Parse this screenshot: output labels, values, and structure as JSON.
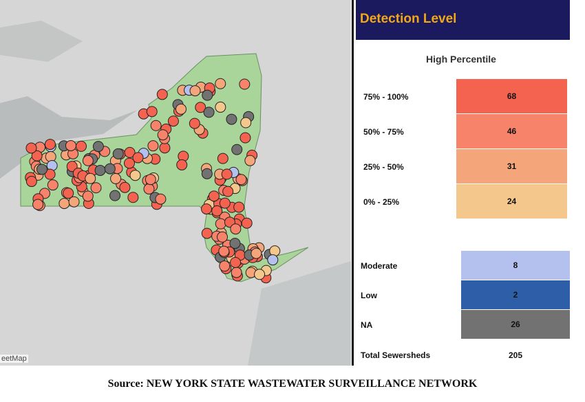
{
  "map": {
    "credit": "eetMap"
  },
  "legend": {
    "title": "Detection Level",
    "subtitle": "High Percentile",
    "percentile_rows": [
      {
        "label": "75% - 100%",
        "count": 68,
        "color": "#f4634f"
      },
      {
        "label": "50% - 75%",
        "count": 46,
        "color": "#f6836a"
      },
      {
        "label": "25% - 50%",
        "count": 31,
        "color": "#f5a57a"
      },
      {
        "label": "0% - 25%",
        "count": 24,
        "color": "#f4c78c"
      }
    ],
    "other_rows": [
      {
        "label": "Moderate",
        "count": 8,
        "color": "#b4c0ee"
      },
      {
        "label": "Low",
        "count": 2,
        "color": "#2f5ea8"
      },
      {
        "label": "NA",
        "count": 26,
        "color": "#727272"
      }
    ],
    "total": {
      "label": "Total Sewersheds",
      "count": 205
    }
  },
  "source": "Source: NEW YORK STATE WASTEWATER SURVEILLANCE NETWORK"
}
